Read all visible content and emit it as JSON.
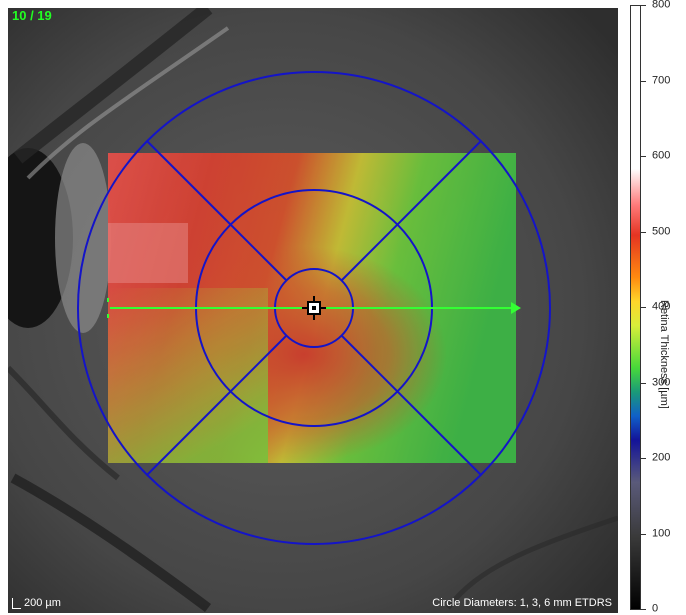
{
  "image_counter": "10 / 19",
  "scale_bar_label": "200 µm",
  "circle_note": "Circle Diameters: 1, 3, 6 mm ETDRS",
  "colorbar": {
    "title": "Retina Thickness [µm]",
    "ticks": [
      "800",
      "700",
      "600",
      "500",
      "400",
      "300",
      "200",
      "100",
      "0"
    ],
    "range": [
      0,
      800
    ],
    "colors": {
      "high": "#ffffff",
      "red": "#e43422",
      "orange": "#ff8a10",
      "yellow": "#ffd62a",
      "green": "#48d83a",
      "blue": "#131399",
      "low": "#000000"
    }
  },
  "overlay": {
    "etdrs_grid_color": "#1414c8",
    "scan_line_color": "#33ff33",
    "fovea_marker_icon": "crosshair-square-icon"
  }
}
